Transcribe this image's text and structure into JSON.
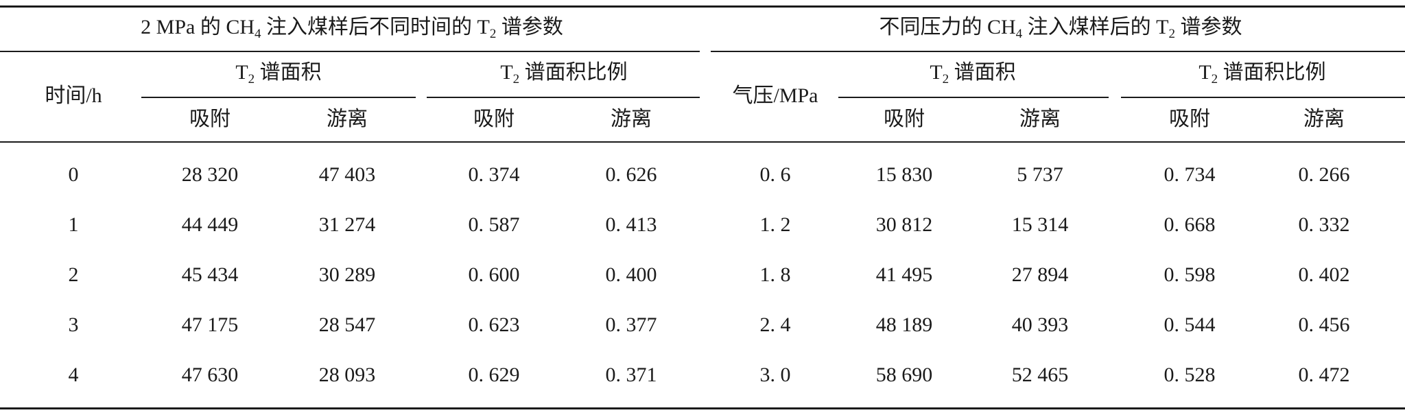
{
  "left": {
    "title_pre": "2 MPa 的 CH",
    "title_sub": "4",
    "title_post": " 注入煤样后不同时间的 T",
    "title_sub2": "2",
    "title_end": " 谱参数",
    "row_header": "时间/h",
    "group1_pre": "T",
    "group1_sub": "2",
    "group1_post": " 谱面积",
    "group2_pre": "T",
    "group2_sub": "2",
    "group2_post": " 谱面积比例",
    "col_adsorb": "吸附",
    "col_free": "游离",
    "rows": [
      {
        "key": "0",
        "area_ads": "28 320",
        "area_free": "47 403",
        "ratio_ads": "0. 374",
        "ratio_free": "0. 626"
      },
      {
        "key": "1",
        "area_ads": "44 449",
        "area_free": "31 274",
        "ratio_ads": "0. 587",
        "ratio_free": "0. 413"
      },
      {
        "key": "2",
        "area_ads": "45 434",
        "area_free": "30 289",
        "ratio_ads": "0. 600",
        "ratio_free": "0. 400"
      },
      {
        "key": "3",
        "area_ads": "47 175",
        "area_free": "28 547",
        "ratio_ads": "0. 623",
        "ratio_free": "0. 377"
      },
      {
        "key": "4",
        "area_ads": "47 630",
        "area_free": "28 093",
        "ratio_ads": "0. 629",
        "ratio_free": "0. 371"
      }
    ]
  },
  "right": {
    "title_pre": "不同压力的 CH",
    "title_sub": "4",
    "title_post": " 注入煤样后的 T",
    "title_sub2": "2",
    "title_end": " 谱参数",
    "row_header": "气压/MPa",
    "group1_pre": "T",
    "group1_sub": "2",
    "group1_post": " 谱面积",
    "group2_pre": "T",
    "group2_sub": "2",
    "group2_post": " 谱面积比例",
    "col_adsorb": "吸附",
    "col_free": "游离",
    "rows": [
      {
        "key": "0. 6",
        "area_ads": "15 830",
        "area_free": "5 737",
        "ratio_ads": "0. 734",
        "ratio_free": "0. 266"
      },
      {
        "key": "1. 2",
        "area_ads": "30 812",
        "area_free": "15 314",
        "ratio_ads": "0. 668",
        "ratio_free": "0. 332"
      },
      {
        "key": "1. 8",
        "area_ads": "41 495",
        "area_free": "27 894",
        "ratio_ads": "0. 598",
        "ratio_free": "0. 402"
      },
      {
        "key": "2. 4",
        "area_ads": "48 189",
        "area_free": "40 393",
        "ratio_ads": "0. 544",
        "ratio_free": "0. 456"
      },
      {
        "key": "3. 0",
        "area_ads": "58 690",
        "area_free": "52 465",
        "ratio_ads": "0. 528",
        "ratio_free": "0. 472"
      }
    ]
  }
}
